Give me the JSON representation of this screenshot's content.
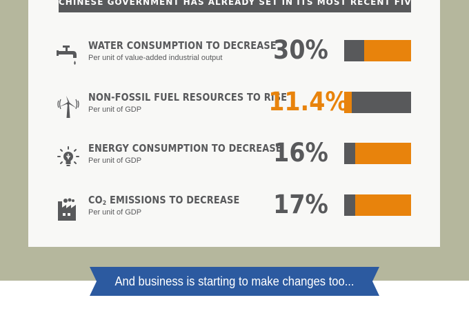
{
  "header": {
    "text": "CHINESE GOVERNMENT HAS ALREADY SET IN ITS MOST RECENT FIVE-YEAR PLAN"
  },
  "targets": [
    {
      "title": "WATER CONSUMPTION TO DECREASE",
      "subtitle": "Per unit of value-added industrial output",
      "value": "30%",
      "bar_fraction": 0.3,
      "icon": "faucet-icon"
    },
    {
      "title": "NON-FOSSIL FUEL RESOURCES TO RISE",
      "subtitle": "Per unit of GDP",
      "value": "11.4%",
      "bar_fraction": 0.114,
      "icon": "wind-turbine-icon"
    },
    {
      "title": "ENERGY CONSUMPTION TO DECREASE",
      "subtitle": "Per unit of GDP",
      "value": "16%",
      "bar_fraction": 0.16,
      "icon": "lightbulb-icon"
    },
    {
      "title_prefix": "CO",
      "title_sub": "2",
      "title_rest": " EMISSIONS TO DECREASE",
      "subtitle": "Per unit of GDP",
      "value": "17%",
      "bar_fraction": 0.17,
      "icon": "factory-icon"
    }
  ],
  "banner": {
    "text": "And business is starting to make changes too..."
  },
  "colors": {
    "accent": "#e8830c",
    "dark": "#58595b",
    "banner": "#2c5aa0",
    "background": "#b5b79d"
  }
}
